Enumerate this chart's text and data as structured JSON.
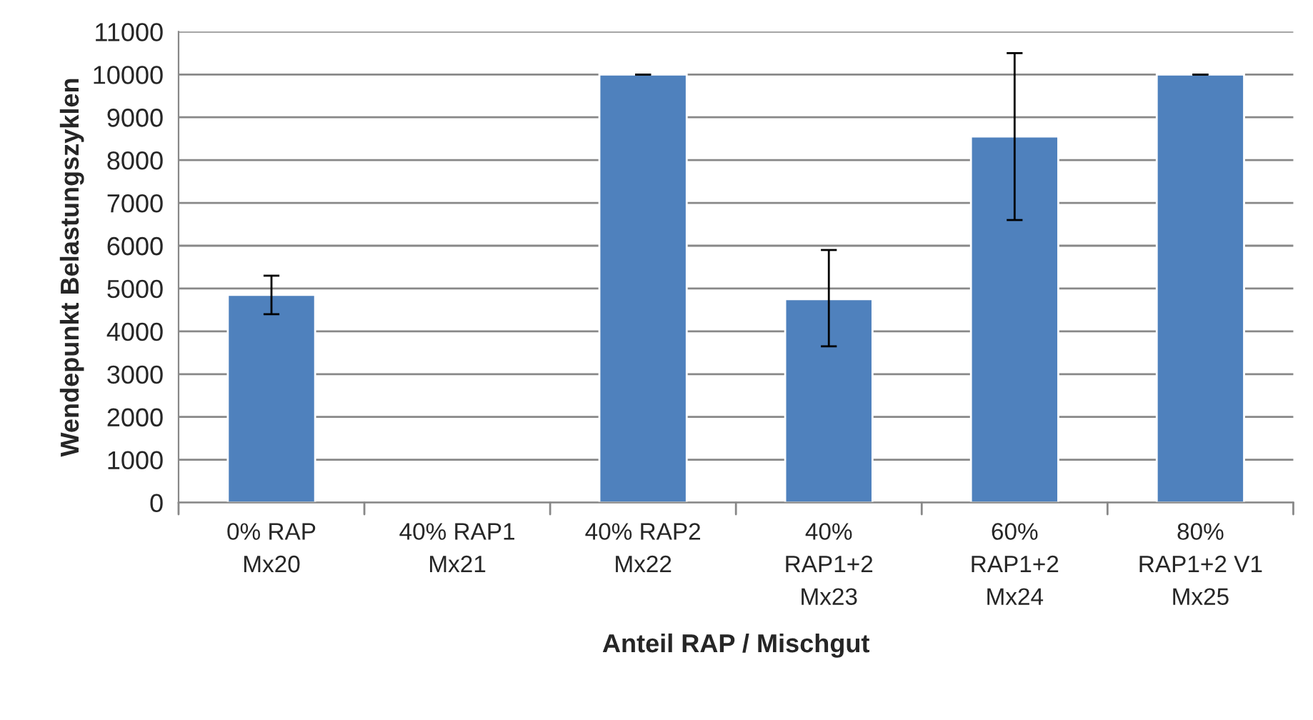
{
  "chart_data": {
    "type": "bar",
    "xlabel": "Anteil RAP / Mischgut",
    "ylabel": "Wendepunkt Belastungszyklen",
    "categories": [
      "0% RAP\nMx20",
      "40% RAP1\nMx21",
      "40% RAP2\nMx22",
      "40%\nRAP1+2\nMx23",
      "60%\nRAP1+2\nMx24",
      "80%\nRAP1+2 V1\nMx25"
    ],
    "values": [
      4850,
      null,
      10000,
      4750,
      8550,
      10000
    ],
    "errors": [
      [
        4400,
        5300
      ],
      null,
      [
        10000,
        10000
      ],
      [
        3650,
        5900
      ],
      [
        6600,
        10500
      ],
      [
        10000,
        10000
      ]
    ],
    "color": "#4f81bd",
    "ylim": [
      0,
      11000
    ],
    "yticks": [
      0,
      1000,
      2000,
      3000,
      4000,
      5000,
      6000,
      7000,
      8000,
      9000,
      10000,
      11000
    ],
    "grid": "y"
  }
}
